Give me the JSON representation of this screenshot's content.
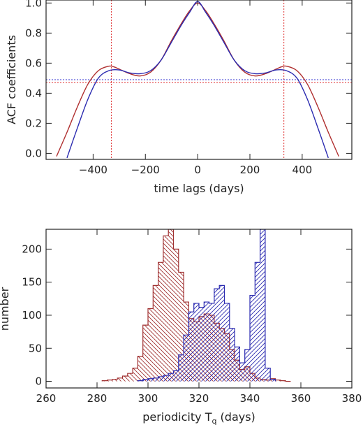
{
  "chart_data": [
    {
      "type": "line",
      "xlabel": "time lags (days)",
      "ylabel": "ACF coefficients",
      "xlim": [
        -580,
        590
      ],
      "ylim": [
        -0.04,
        1.02
      ],
      "x_ticks": [
        -400,
        -200,
        0,
        200,
        400
      ],
      "x_tick_labels": [
        "−400",
        "−200",
        "0",
        "200",
        "400"
      ],
      "y_ticks": [
        0.0,
        0.2,
        0.4,
        0.6,
        0.8,
        1.0
      ],
      "y_tick_labels": [
        "0.0",
        "0.2",
        "0.4",
        "0.6",
        "0.8",
        "1.0"
      ],
      "grid": false,
      "series": [
        {
          "color": "#b03030",
          "x": [
            -540,
            -500,
            -460,
            -420,
            -380,
            -340,
            -320,
            -300,
            -260,
            -220,
            -180,
            -140,
            -100,
            -60,
            -30,
            0,
            30,
            60,
            100,
            140,
            180,
            220,
            260,
            300,
            320,
            340,
            380,
            420,
            460,
            500,
            540
          ],
          "y": [
            -0.02,
            0.14,
            0.31,
            0.46,
            0.55,
            0.58,
            0.575,
            0.56,
            0.53,
            0.515,
            0.54,
            0.62,
            0.75,
            0.87,
            0.95,
            1.0,
            0.95,
            0.87,
            0.75,
            0.62,
            0.54,
            0.515,
            0.53,
            0.56,
            0.575,
            0.58,
            0.55,
            0.46,
            0.31,
            0.14,
            -0.02
          ]
        },
        {
          "color": "#2b2bb0",
          "x": [
            -500,
            -460,
            -420,
            -380,
            -340,
            -300,
            -260,
            -220,
            -180,
            -140,
            -100,
            -60,
            -30,
            0,
            30,
            60,
            100,
            140,
            180,
            220,
            260,
            300,
            340,
            380,
            420,
            460,
            500
          ],
          "y": [
            -0.03,
            0.17,
            0.36,
            0.5,
            0.55,
            0.555,
            0.535,
            0.53,
            0.55,
            0.62,
            0.74,
            0.86,
            0.94,
            1.01,
            0.94,
            0.86,
            0.74,
            0.62,
            0.55,
            0.53,
            0.535,
            0.555,
            0.55,
            0.5,
            0.36,
            0.17,
            -0.03
          ]
        }
      ],
      "reference_lines": [
        {
          "orientation": "vertical",
          "value": -330,
          "color": "#e03030",
          "style": "dotted"
        },
        {
          "orientation": "vertical",
          "value": 330,
          "color": "#e03030",
          "style": "dotted"
        },
        {
          "orientation": "horizontal",
          "value": 0.49,
          "color": "#3030d0",
          "style": "dotted"
        },
        {
          "orientation": "horizontal",
          "value": 0.47,
          "color": "#e03030",
          "style": "dotted"
        }
      ]
    },
    {
      "type": "bar",
      "xlabel": "periodicity T",
      "xlabel_subscript": "q",
      "xlabel_suffix": " (days)",
      "ylabel": "number",
      "xlim": [
        260,
        380
      ],
      "ylim": [
        -10,
        230
      ],
      "x_ticks": [
        260,
        280,
        300,
        320,
        340,
        360,
        380
      ],
      "x_tick_labels": [
        "260",
        "280",
        "300",
        "320",
        "340",
        "360",
        "380"
      ],
      "y_ticks": [
        0,
        50,
        100,
        150,
        200
      ],
      "y_tick_labels": [
        "0",
        "50",
        "100",
        "150",
        "200"
      ],
      "grid": false,
      "bin_width": 2,
      "series": [
        {
          "color": "#a03030",
          "hatch": "backslash",
          "bin_starts": [
            282,
            284,
            286,
            288,
            290,
            292,
            294,
            296,
            298,
            300,
            302,
            304,
            306,
            308,
            310,
            312,
            314,
            316,
            318,
            320,
            322,
            324,
            326,
            328,
            330,
            332,
            334,
            336,
            338,
            340,
            342,
            344,
            346,
            348,
            350,
            352,
            354
          ],
          "values": [
            1,
            2,
            3,
            5,
            8,
            12,
            20,
            38,
            85,
            110,
            145,
            180,
            220,
            230,
            200,
            165,
            120,
            95,
            90,
            98,
            102,
            100,
            88,
            80,
            72,
            48,
            32,
            18,
            22,
            12,
            5,
            3,
            2,
            4,
            2,
            1,
            0
          ]
        },
        {
          "color": "#2a2ab0",
          "hatch": "slash",
          "bin_starts": [
            296,
            298,
            300,
            302,
            304,
            306,
            308,
            310,
            312,
            314,
            316,
            318,
            320,
            322,
            324,
            326,
            328,
            330,
            332,
            334,
            336,
            338,
            340,
            342,
            344,
            346,
            348
          ],
          "values": [
            1,
            3,
            4,
            5,
            7,
            9,
            12,
            16,
            40,
            70,
            105,
            118,
            112,
            120,
            118,
            140,
            145,
            118,
            80,
            52,
            28,
            48,
            130,
            180,
            230,
            20,
            3
          ]
        }
      ]
    }
  ]
}
